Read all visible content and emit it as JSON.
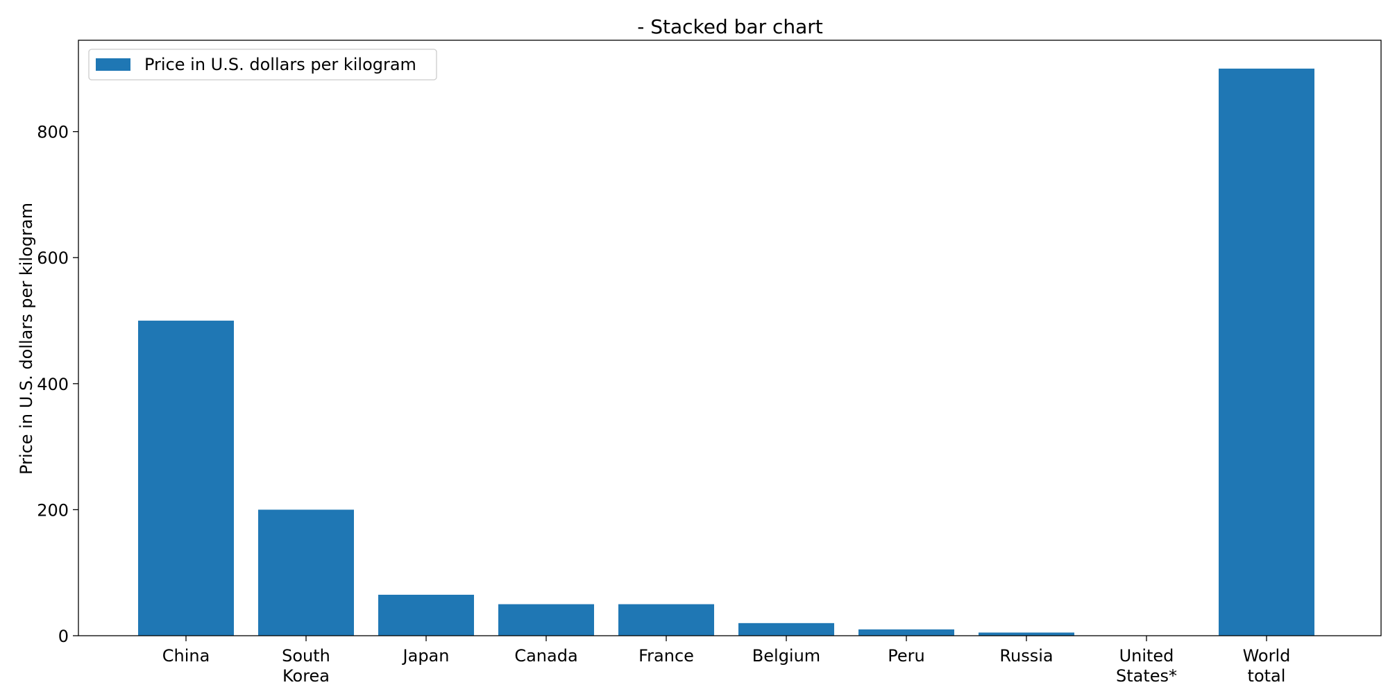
{
  "chart_data": {
    "type": "bar",
    "title": "- Stacked bar chart",
    "xlabel": "",
    "ylabel": "Price in U.S. dollars per kilogram",
    "categories": [
      "China",
      "South Korea",
      "Japan",
      "Canada",
      "France",
      "Belgium",
      "Peru",
      "Russia",
      "United States*",
      "World total"
    ],
    "category_label_lines": [
      [
        "China"
      ],
      [
        "South",
        "Korea"
      ],
      [
        "Japan"
      ],
      [
        "Canada"
      ],
      [
        "France"
      ],
      [
        "Belgium"
      ],
      [
        "Peru"
      ],
      [
        "Russia"
      ],
      [
        "United",
        "States*"
      ],
      [
        "World",
        "total"
      ]
    ],
    "series": [
      {
        "name": "Price in U.S. dollars per kilogram",
        "color": "#1f77b4",
        "values": [
          500,
          200,
          65,
          50,
          50,
          20,
          10,
          5,
          0,
          900
        ]
      }
    ],
    "ylim": [
      0,
      945
    ],
    "yticks": [
      0,
      200,
      400,
      600,
      800
    ],
    "grid": false,
    "legend_position": "top-left"
  }
}
